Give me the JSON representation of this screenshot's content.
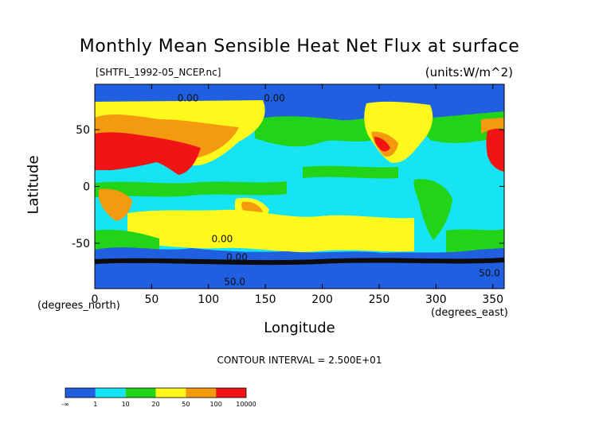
{
  "title": "Monthly Mean Sensible Heat Net Flux at surface",
  "file_label": "[SHTFL_1992-05_NCEP.nc]",
  "units_label": "(units:W/m^2)",
  "contour_interval": "CONTOUR INTERVAL = 2.500E+01",
  "colors": {
    "blue": "#1f5fe0",
    "cyan": "#16e4f4",
    "green": "#22d418",
    "yellow": "#fff81c",
    "orange": "#f39a0f",
    "red": "#f01414"
  },
  "chart_data": {
    "type": "heatmap",
    "title": "Monthly Mean Sensible Heat Net Flux at surface",
    "xlabel": "Longitude",
    "ylabel": "Latitude",
    "x_units": "(degrees_east)",
    "y_units": "(degrees_north)",
    "xlim": [
      0,
      360
    ],
    "ylim": [
      -90,
      90
    ],
    "x_ticks": [
      0,
      50,
      100,
      150,
      200,
      250,
      300,
      350
    ],
    "y_ticks": [
      -50,
      0,
      50
    ],
    "contour_labels": [
      {
        "text": "0.00",
        "lon": 82,
        "lat": 75
      },
      {
        "text": "0.00",
        "lon": 158,
        "lat": 75
      },
      {
        "text": "0.00",
        "lon": 112,
        "lat": -49
      },
      {
        "text": "0.00",
        "lon": 125,
        "lat": -65
      },
      {
        "text": "50.0",
        "lon": 123,
        "lat": -87
      },
      {
        "text": "50.0",
        "lon": 347,
        "lat": -79
      }
    ],
    "colorbar": {
      "bounds": [
        "-∞",
        "1",
        "10",
        "20",
        "50",
        "100",
        "10000"
      ],
      "colors": [
        "#1f5fe0",
        "#16e4f4",
        "#22d418",
        "#fff81c",
        "#f39a0f",
        "#f01414"
      ]
    }
  }
}
